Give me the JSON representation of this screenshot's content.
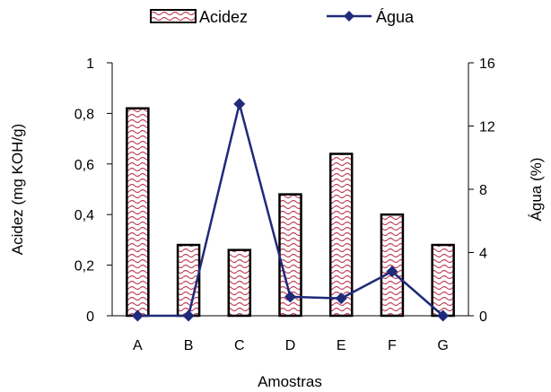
{
  "chart_data": {
    "type": "bar",
    "categories": [
      "A",
      "B",
      "C",
      "D",
      "E",
      "F",
      "G"
    ],
    "series": [
      {
        "name": "Acidez",
        "type": "bar",
        "axis": "left",
        "values": [
          0.82,
          0.28,
          0.26,
          0.48,
          0.64,
          0.4,
          0.28
        ],
        "pattern": "red-waves"
      },
      {
        "name": "Água",
        "type": "line",
        "axis": "right",
        "values": [
          0.0,
          0.0,
          13.4,
          1.2,
          1.1,
          2.8,
          0.0
        ],
        "color": "#1f2a7a",
        "marker": "diamond"
      }
    ],
    "xlabel": "Amostras",
    "ylabel_left": "Acidez (mg KOH/g)",
    "ylabel_right": "Água (%)",
    "ylim_left": [
      0,
      1
    ],
    "yticks_left": [
      "0",
      "0,2",
      "0,4",
      "0,6",
      "0,8",
      "1"
    ],
    "ylim_right": [
      0,
      16
    ],
    "yticks_right": [
      "0",
      "4",
      "8",
      "12",
      "16"
    ],
    "grid": false,
    "legend_position": "top-center",
    "colors": {
      "bar_pattern": "#c0405a",
      "bar_outline": "#000000",
      "line": "#1f2a7a"
    }
  }
}
